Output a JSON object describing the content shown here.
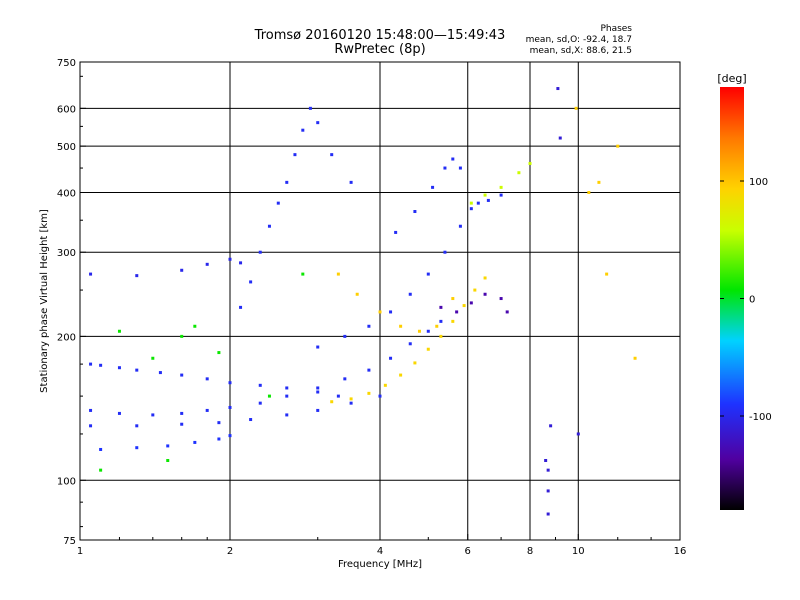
{
  "header": {
    "title_line1": "Tromsø 20160120 15:48:00—15:49:43",
    "title_line2": "RwPretec (8p)"
  },
  "phase_info": {
    "label": "Phases",
    "line_o": "mean, sd,O: -92.4, 18.7",
    "line_x": "mean, sd,X: 88.6, 21.5"
  },
  "chart_data": {
    "type": "scatter",
    "title": "Tromsø 20160120 15:48:00—15:49:43",
    "subtitle": "RwPretec (8p)",
    "xlabel": "Frequency [MHz]",
    "ylabel": "Stationary phase Virtual Height [km]",
    "x_scale": "log",
    "y_scale": "log",
    "xlim": [
      1,
      16
    ],
    "ylim": [
      75,
      750
    ],
    "x_ticks": [
      1,
      2,
      4,
      6,
      8,
      10,
      16
    ],
    "y_ticks": [
      75,
      100,
      200,
      300,
      400,
      500,
      600,
      750
    ],
    "grid_x": [
      2,
      4,
      6,
      8,
      10
    ],
    "grid_y": [
      100,
      200,
      300,
      400,
      500,
      600
    ],
    "colorbar": {
      "unit": "[deg]",
      "range": [
        -180,
        180
      ],
      "ticks": [
        100,
        0,
        -100
      ]
    },
    "series": [
      {
        "color_phase": -95,
        "points": [
          [
            1.05,
            175
          ],
          [
            1.1,
            174
          ],
          [
            1.2,
            172
          ],
          [
            1.3,
            170
          ],
          [
            1.45,
            168
          ],
          [
            1.6,
            166
          ],
          [
            1.8,
            163
          ],
          [
            2.0,
            160
          ],
          [
            2.3,
            158
          ],
          [
            2.6,
            156
          ],
          [
            3.0,
            153
          ],
          [
            3.3,
            150
          ]
        ]
      },
      {
        "color_phase": -95,
        "points": [
          [
            1.05,
            140
          ],
          [
            1.2,
            138
          ],
          [
            1.4,
            137
          ],
          [
            1.6,
            138
          ],
          [
            1.8,
            140
          ],
          [
            2.0,
            142
          ],
          [
            2.3,
            145
          ],
          [
            2.6,
            150
          ],
          [
            3.0,
            156
          ],
          [
            3.4,
            163
          ],
          [
            3.8,
            170
          ],
          [
            4.2,
            180
          ],
          [
            4.6,
            193
          ],
          [
            5.0,
            205
          ],
          [
            5.3,
            215
          ]
        ]
      },
      {
        "color_phase": -90,
        "points": [
          [
            1.1,
            116
          ],
          [
            1.3,
            117
          ],
          [
            1.5,
            118
          ],
          [
            1.7,
            120
          ],
          [
            1.9,
            122
          ],
          [
            2.0,
            124
          ]
        ]
      },
      {
        "color_phase": -95,
        "points": [
          [
            1.05,
            130
          ],
          [
            1.3,
            130
          ],
          [
            1.6,
            131
          ],
          [
            1.9,
            132
          ],
          [
            2.2,
            134
          ],
          [
            2.6,
            137
          ],
          [
            3.0,
            140
          ],
          [
            3.5,
            145
          ],
          [
            4.0,
            150
          ]
        ]
      },
      {
        "color_phase": -100,
        "points": [
          [
            1.05,
            270
          ],
          [
            1.3,
            268
          ],
          [
            1.6,
            275
          ],
          [
            1.8,
            283
          ],
          [
            2.0,
            290
          ],
          [
            2.1,
            285
          ]
        ]
      },
      {
        "color_phase": -95,
        "points": [
          [
            2.1,
            230
          ],
          [
            2.2,
            260
          ],
          [
            2.3,
            300
          ],
          [
            2.4,
            340
          ],
          [
            2.5,
            380
          ],
          [
            2.6,
            420
          ],
          [
            2.7,
            480
          ],
          [
            2.8,
            540
          ],
          [
            2.9,
            600
          ],
          [
            3.0,
            560
          ],
          [
            3.2,
            480
          ],
          [
            3.5,
            420
          ]
        ]
      },
      {
        "color_phase": -95,
        "points": [
          [
            3.0,
            190
          ],
          [
            3.4,
            200
          ],
          [
            3.8,
            210
          ],
          [
            4.2,
            225
          ],
          [
            4.6,
            245
          ],
          [
            5.0,
            270
          ],
          [
            5.4,
            300
          ],
          [
            5.8,
            340
          ],
          [
            6.1,
            370
          ],
          [
            6.3,
            380
          ],
          [
            6.6,
            385
          ],
          [
            7.0,
            395
          ]
        ]
      },
      {
        "color_phase": 90,
        "points": [
          [
            3.2,
            146
          ],
          [
            3.5,
            148
          ],
          [
            3.8,
            152
          ],
          [
            4.1,
            158
          ],
          [
            4.4,
            166
          ],
          [
            4.7,
            176
          ],
          [
            5.0,
            188
          ],
          [
            5.3,
            200
          ],
          [
            5.6,
            215
          ],
          [
            5.9,
            232
          ],
          [
            6.2,
            250
          ],
          [
            6.5,
            265
          ]
        ]
      },
      {
        "color_phase": 95,
        "points": [
          [
            3.3,
            270
          ],
          [
            3.6,
            245
          ],
          [
            4.0,
            225
          ],
          [
            4.4,
            210
          ],
          [
            4.8,
            205
          ],
          [
            5.2,
            210
          ],
          [
            5.6,
            240
          ]
        ]
      },
      {
        "color_phase": -130,
        "points": [
          [
            5.3,
            230
          ],
          [
            5.7,
            225
          ],
          [
            6.1,
            235
          ],
          [
            6.5,
            245
          ],
          [
            7.0,
            240
          ],
          [
            7.2,
            225
          ]
        ]
      },
      {
        "color_phase": -95,
        "points": [
          [
            4.3,
            330
          ],
          [
            4.7,
            365
          ],
          [
            5.1,
            410
          ],
          [
            5.4,
            450
          ],
          [
            5.6,
            470
          ],
          [
            5.8,
            450
          ]
        ]
      },
      {
        "color_phase": 60,
        "points": [
          [
            6.1,
            380
          ],
          [
            6.5,
            395
          ],
          [
            7.0,
            410
          ],
          [
            7.6,
            440
          ],
          [
            8.0,
            460
          ]
        ]
      },
      {
        "color_phase": -110,
        "points": [
          [
            8.6,
            110
          ],
          [
            8.7,
            105
          ],
          [
            8.7,
            95
          ],
          [
            8.7,
            85
          ],
          [
            8.8,
            130
          ],
          [
            9.1,
            660
          ],
          [
            9.2,
            520
          ],
          [
            10.0,
            125
          ]
        ]
      },
      {
        "color_phase": 95,
        "points": [
          [
            10.5,
            400
          ],
          [
            11.0,
            420
          ],
          [
            12.0,
            500
          ],
          [
            13.0,
            180
          ],
          [
            9.9,
            600
          ],
          [
            11.4,
            270
          ]
        ]
      },
      {
        "color_phase": 10,
        "points": [
          [
            1.2,
            205
          ],
          [
            1.4,
            180
          ],
          [
            1.5,
            110
          ],
          [
            1.6,
            200
          ],
          [
            1.7,
            210
          ],
          [
            1.9,
            185
          ],
          [
            2.4,
            150
          ],
          [
            2.8,
            270
          ],
          [
            1.1,
            105
          ]
        ]
      }
    ]
  }
}
